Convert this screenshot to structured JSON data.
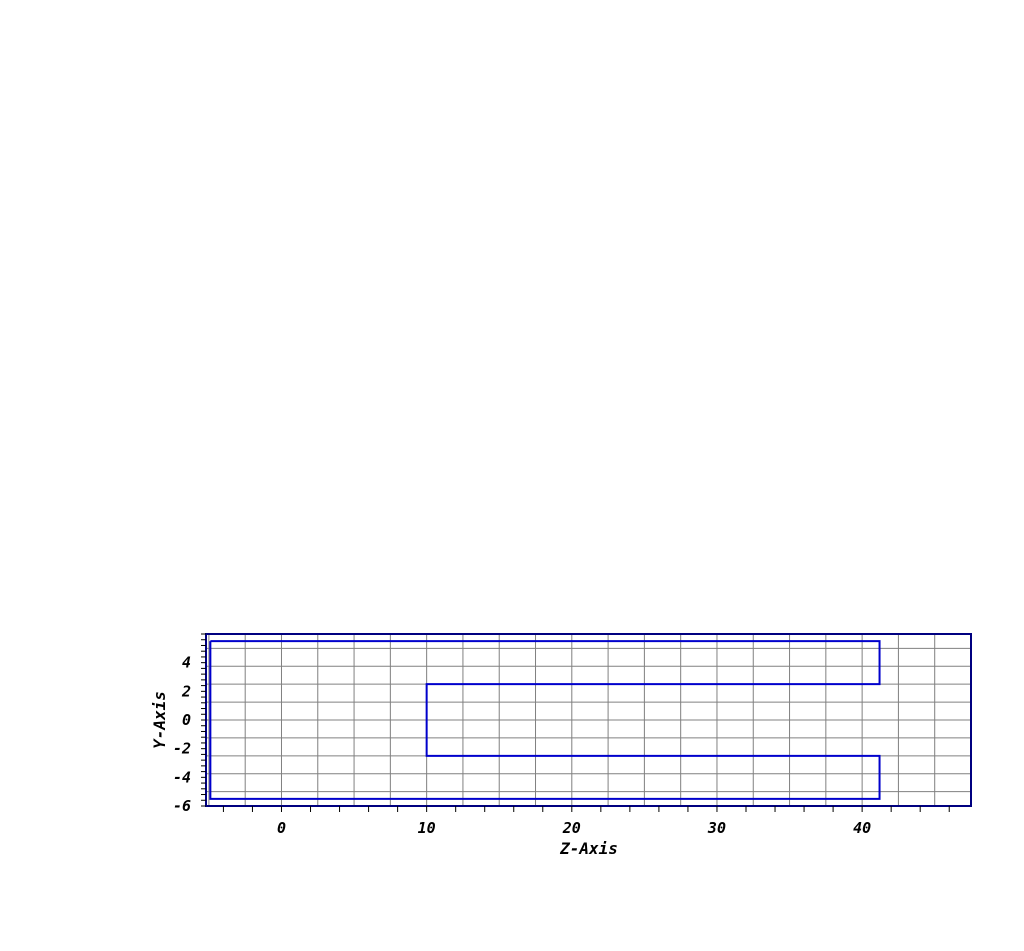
{
  "chart_data": {
    "type": "line",
    "title": "",
    "xlabel": "Z-Axis",
    "ylabel": "Y-Axis",
    "xlim": [
      -5.2,
      47.5
    ],
    "ylim": [
      -6,
      6
    ],
    "x_major_ticks": [
      0,
      10,
      20,
      30,
      40
    ],
    "y_major_ticks": [
      -6,
      -4,
      -2,
      0,
      2,
      4
    ],
    "x_grid_step": 2.5,
    "y_grid_step": 1.25,
    "grid": true,
    "line_color": "#0000cc",
    "grid_color": "#808080",
    "series": [
      {
        "x": [
          -4.9,
          41.2,
          41.2,
          10.0,
          10.0,
          41.2,
          41.2,
          -4.9,
          -4.9
        ],
        "y": [
          5.5,
          5.5,
          2.5,
          2.5,
          -2.5,
          -2.5,
          -5.5,
          -5.5,
          5.5
        ]
      }
    ]
  }
}
